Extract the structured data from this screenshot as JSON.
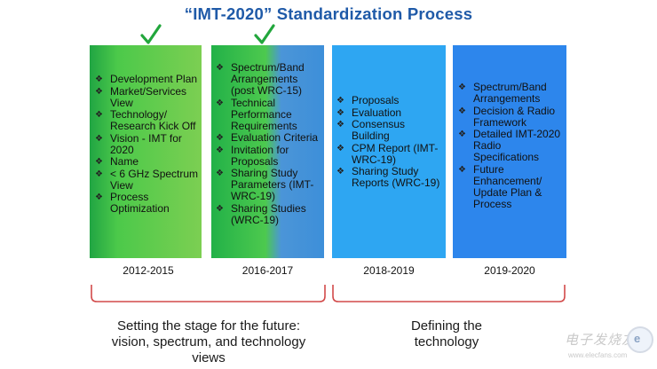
{
  "title": "“IMT-2020” Standardization Process",
  "columns": [
    {
      "year": "2012-2015",
      "items": [
        "Development Plan",
        "Market/Services View",
        "Technology/ Research Kick Off",
        "Vision - IMT for 2020",
        "Name",
        "< 6 GHz Spectrum View",
        "Process Optimization"
      ]
    },
    {
      "year": "2016-2017",
      "items": [
        "Spectrum/Band Arrangements (post WRC-15)",
        "Technical Performance Requirements",
        "Evaluation Criteria",
        "Invitation for Proposals",
        "Sharing Study Parameters (IMT-WRC-19)",
        "Sharing Studies (WRC-19)"
      ]
    },
    {
      "year": "2018-2019",
      "items": [
        "Proposals",
        "Evaluation",
        "Consensus Building",
        "CPM Report (IMT-WRC-19)",
        "Sharing Study Reports (WRC-19)"
      ]
    },
    {
      "year": "2019-2020",
      "items": [
        "Spectrum/Band Arrangements",
        "Decision & Radio Framework",
        "Detailed IMT-2020 Radio Specifications",
        "Future Enhancement/ Update Plan & Process"
      ]
    }
  ],
  "groups": [
    {
      "caption": "Setting the stage for the future: vision, spectrum, and technology views"
    },
    {
      "caption": "Defining the technology"
    }
  ],
  "watermark": {
    "text": "电子发烧友",
    "url": "www.elecfans.com"
  },
  "colors": {
    "title": "#1f5aa8",
    "check": "#22a63c",
    "bracket": "#d24a4a"
  }
}
